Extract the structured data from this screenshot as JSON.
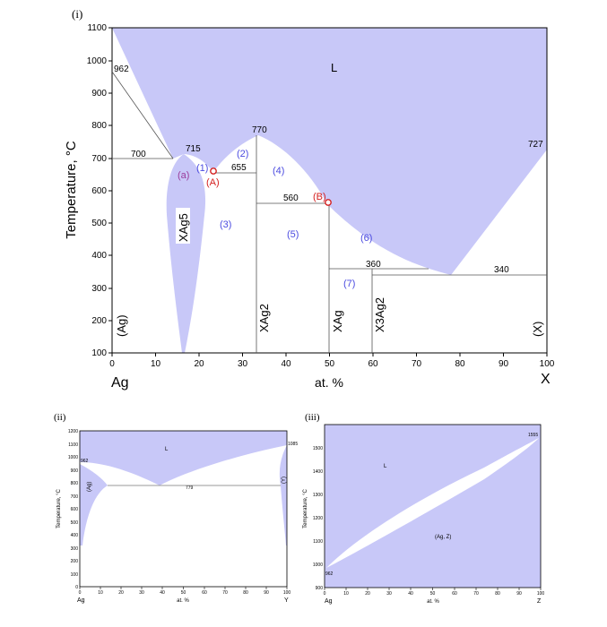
{
  "colors": {
    "fill": "#c8c8f8",
    "blue": "#4c4ce0",
    "purple": "#9b3c9b",
    "red": "#d42020",
    "line": "#7a7a7a"
  },
  "panel_i": {
    "label": "(i)",
    "ylabel": "Temperature, °C",
    "xlabel": "at. %",
    "left_end": "Ag",
    "right_end": "X",
    "xticks": [
      "0",
      "10",
      "20",
      "30",
      "40",
      "50",
      "60",
      "70",
      "80",
      "90",
      "100"
    ],
    "yticks": [
      "100",
      "200",
      "300",
      "400",
      "500",
      "600",
      "700",
      "800",
      "900",
      "1000",
      "1100"
    ],
    "temps": {
      "t962": "962",
      "t700": "700",
      "t715": "715",
      "t655": "655",
      "t770": "770",
      "t560": "560",
      "t727": "727",
      "t360": "360",
      "t340": "340"
    },
    "regions": {
      "L": "L",
      "a": "(a)",
      "r1": "(1)",
      "r2": "(2)",
      "r3": "(3)",
      "r4": "(4)",
      "r5": "(5)",
      "r6": "(6)",
      "r7": "(7)"
    },
    "points": {
      "A": "(A)",
      "B": "(B)"
    },
    "phases": {
      "ag": "(Ag)",
      "xag5": "XAg5",
      "xag2": "XAg2",
      "xag": "XAg",
      "x3ag2": "X3Ag2",
      "x": "(X)"
    }
  },
  "panel_ii": {
    "label": "(ii)",
    "ylabel": "Temperature, °C",
    "xlabel": "at. %",
    "left_end": "Ag",
    "right_end": "Y",
    "xticks": [
      "0",
      "10",
      "20",
      "30",
      "40",
      "50",
      "60",
      "70",
      "80",
      "90",
      "100"
    ],
    "yticks": [
      "0",
      "100",
      "200",
      "300",
      "400",
      "500",
      "600",
      "700",
      "800",
      "900",
      "1000",
      "1100",
      "1200"
    ],
    "temps": {
      "t962": "962",
      "t1085": "1085",
      "t779": "779"
    },
    "regions": {
      "L": "L",
      "ag": "(Ag)",
      "y": "(Y)"
    }
  },
  "panel_iii": {
    "label": "(iii)",
    "ylabel": "Temperature, °C",
    "xlabel": "at. %",
    "left_end": "Ag",
    "right_end": "Z",
    "xticks": [
      "0",
      "10",
      "20",
      "30",
      "40",
      "50",
      "60",
      "70",
      "80",
      "90",
      "100"
    ],
    "yticks": [
      "900",
      "1000",
      "1100",
      "1200",
      "1300",
      "1400",
      "1500"
    ],
    "temps": {
      "t962": "962",
      "t1555": "1555"
    },
    "regions": {
      "L": "L",
      "agz": "(Ag, Z)"
    }
  }
}
